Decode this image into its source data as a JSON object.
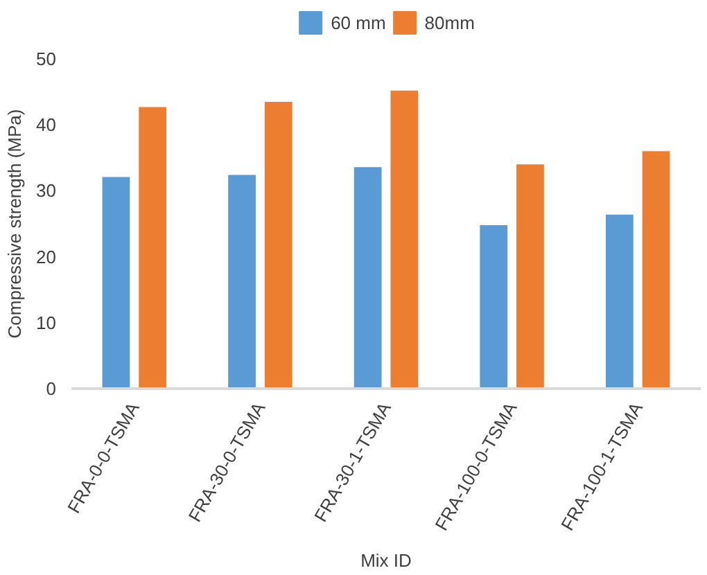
{
  "chart_data": {
    "type": "bar",
    "xlabel": "Mix ID",
    "ylabel": "Compressive strength (MPa)",
    "categories": [
      "FRA-0-0-TSMA",
      "FRA-30-0-TSMA",
      "FRA-30-1-TSMA",
      "FRA-100-0-TSMA",
      "FRA-100-1-TSMA"
    ],
    "series": [
      {
        "name": "60 mm",
        "color": "#5b9bd5",
        "values": [
          32.2,
          32.5,
          33.7,
          24.9,
          26.5
        ]
      },
      {
        "name": "80mm",
        "color": "#ed7d31",
        "values": [
          42.8,
          43.6,
          45.3,
          34.1,
          36.1
        ]
      }
    ],
    "ylim": [
      0,
      50
    ],
    "yticks": [
      0,
      10,
      20,
      30,
      40,
      50
    ],
    "legend": "top",
    "grid": false
  }
}
